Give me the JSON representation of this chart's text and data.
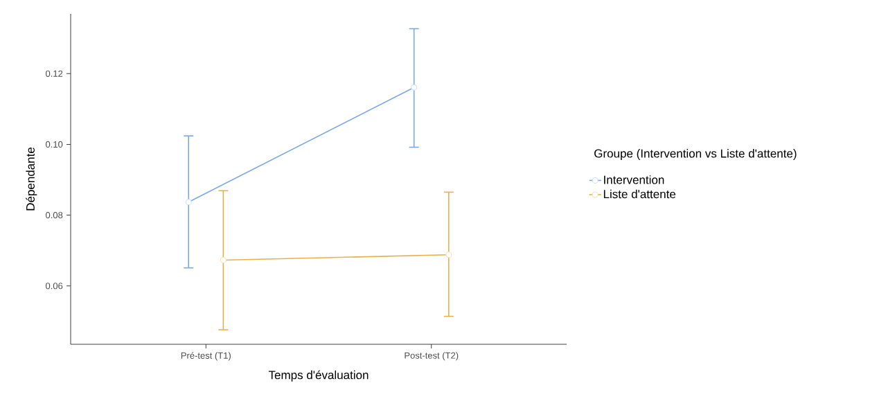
{
  "chart_data": {
    "type": "line",
    "xlabel": "Temps d'évaluation",
    "ylabel": "Dépendante",
    "legend_title": "Groupe (Intervention vs Liste d'attente)",
    "categories": [
      "Pré-test (T1)",
      "Post-test (T2)"
    ],
    "series": [
      {
        "name": "Intervention",
        "color": "#7ba7e8",
        "values": [
          0.0837,
          0.1161
        ],
        "errors": [
          [
            0.0651,
            0.1024
          ],
          [
            0.0992,
            0.1327
          ]
        ]
      },
      {
        "name": "Liste d'attente",
        "color": "#e8b04a",
        "values": [
          0.0673,
          0.0688
        ],
        "errors": [
          [
            0.0476,
            0.0869
          ],
          [
            0.0514,
            0.0865
          ]
        ]
      }
    ],
    "ylim": [
      0.0435,
      0.1369
    ],
    "yticks": [
      {
        "value": 0.06,
        "label": "0.06"
      },
      {
        "value": 0.08,
        "label": "0.08"
      },
      {
        "value": 0.1,
        "label": "0.10"
      },
      {
        "value": 0.12,
        "label": "0.12"
      }
    ],
    "legend": "right",
    "marker": "circle",
    "line_style": "solid"
  }
}
